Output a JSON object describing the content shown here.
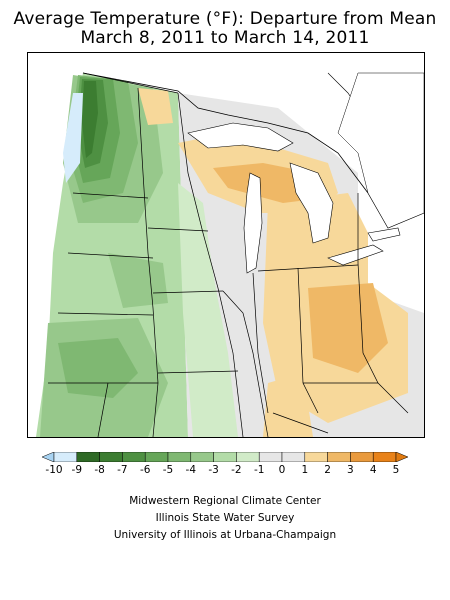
{
  "title": {
    "line1": "Average Temperature (°F): Departure from Mean",
    "line2": "March 8, 2011 to March 14, 2011"
  },
  "legend": {
    "ticks": [
      "-10",
      "-9",
      "-8",
      "-7",
      "-6",
      "-5",
      "-4",
      "-3",
      "-2",
      "-1",
      "0",
      "1",
      "2",
      "3",
      "4",
      "5"
    ],
    "colors": [
      "#d6ecfb",
      "#2f6a26",
      "#3c7d31",
      "#4e9042",
      "#66a659",
      "#7fb872",
      "#97c88b",
      "#b3dca8",
      "#d1ebc8",
      "#e6e6e6",
      "#e6e6e6",
      "#f7d89a",
      "#efb866",
      "#e99a3d",
      "#e88219"
    ],
    "left_arrow_color": "#a8d3f2",
    "right_arrow_color": "#e07a10"
  },
  "credits": {
    "line1": "Midwestern Regional Climate Center",
    "line2": "Illinois State Water Survey",
    "line3": "University of Illinois at Urbana-Champaign"
  }
}
